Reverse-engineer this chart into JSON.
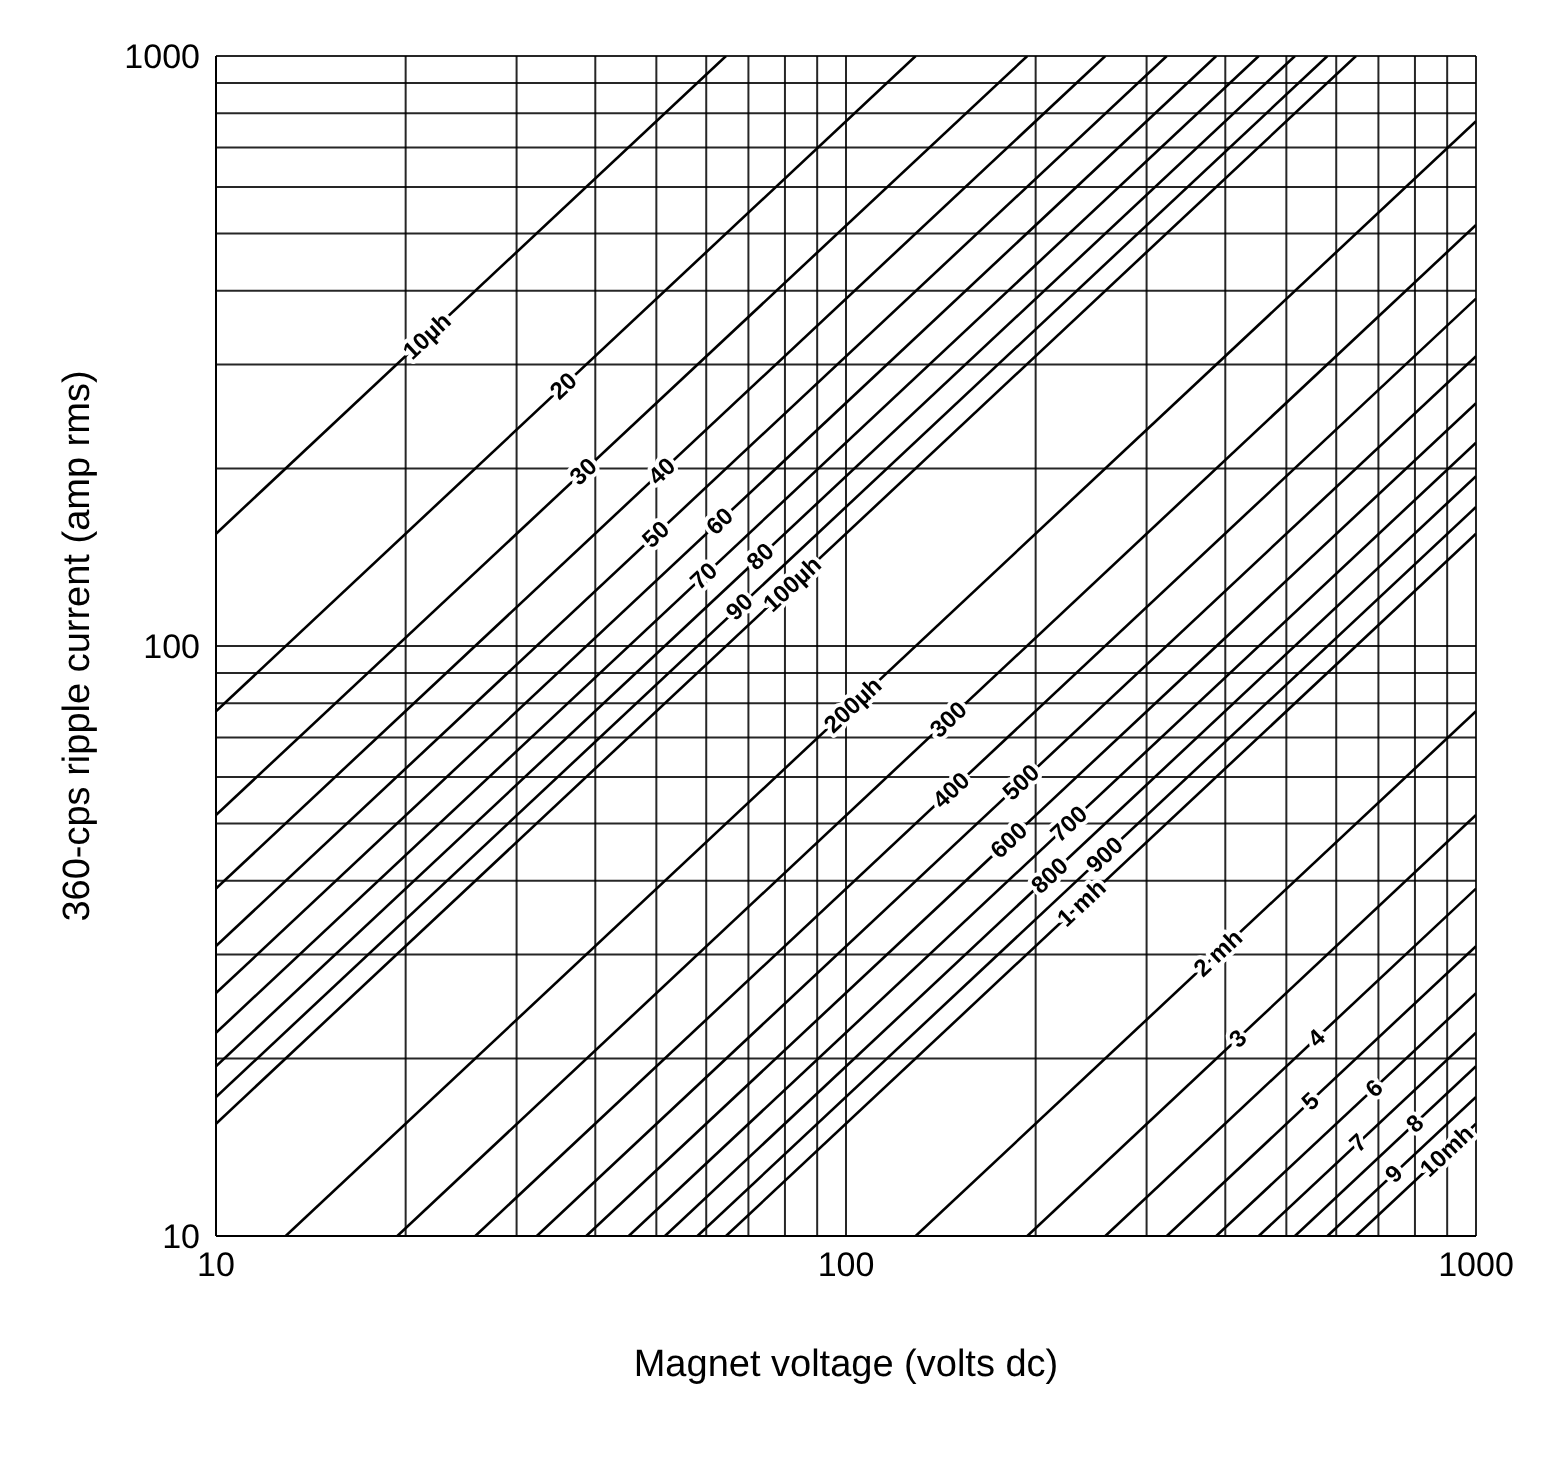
{
  "chart_data": {
    "type": "line",
    "xlabel": "Magnet voltage (volts dc)",
    "ylabel": "360-cps ripple current (amp rms)",
    "log": "xy",
    "grid": true,
    "marker": "none",
    "line_style": "solid",
    "xlim": [
      10,
      1000
    ],
    "ylim": [
      10,
      1000
    ],
    "xticks": [
      10,
      {
        "value": 20,
        "label": null
      },
      {
        "value": 30,
        "label": null
      },
      {
        "value": 40,
        "label": null
      },
      {
        "value": 50,
        "label": null
      },
      {
        "value": 60,
        "label": null
      },
      {
        "value": 70,
        "label": null
      },
      {
        "value": 80,
        "label": null
      },
      {
        "value": 90,
        "label": null
      },
      100,
      {
        "value": 200,
        "label": null
      },
      {
        "value": 300,
        "label": null
      },
      {
        "value": 400,
        "label": null
      },
      {
        "value": 500,
        "label": null
      },
      {
        "value": 600,
        "label": null
      },
      {
        "value": 700,
        "label": null
      },
      {
        "value": 800,
        "label": null
      },
      {
        "value": 900,
        "label": null
      },
      1000
    ],
    "yticks": [
      10,
      {
        "value": 20,
        "label": null
      },
      {
        "value": 30,
        "label": null
      },
      {
        "value": 40,
        "label": null
      },
      {
        "value": 50,
        "label": null
      },
      {
        "value": 60,
        "label": null
      },
      {
        "value": 70,
        "label": null
      },
      {
        "value": 80,
        "label": null
      },
      {
        "value": 90,
        "label": null
      },
      100,
      {
        "value": 200,
        "label": null
      },
      {
        "value": 300,
        "label": null
      },
      {
        "value": 400,
        "label": null
      },
      {
        "value": 500,
        "label": null
      },
      {
        "value": 600,
        "label": null
      },
      {
        "value": 700,
        "label": null
      },
      {
        "value": 800,
        "label": null
      },
      {
        "value": 900,
        "label": null
      },
      1000
    ],
    "series": [
      {
        "name": "10µh",
        "color": "#000000",
        "x": [
          10,
          64.5
        ],
        "values": [
          155,
          1000
        ]
      },
      {
        "name": "20",
        "color": "#000000",
        "x": [
          10,
          129
        ],
        "values": [
          77.5,
          1000
        ]
      },
      {
        "name": "30",
        "color": "#000000",
        "x": [
          10,
          194
        ],
        "values": [
          51.7,
          1000
        ]
      },
      {
        "name": "40",
        "color": "#000000",
        "x": [
          10,
          258
        ],
        "values": [
          38.8,
          1000
        ]
      },
      {
        "name": "50",
        "color": "#000000",
        "x": [
          10,
          323
        ],
        "values": [
          31,
          1000
        ]
      },
      {
        "name": "60",
        "color": "#000000",
        "x": [
          10,
          387
        ],
        "values": [
          25.8,
          1000
        ]
      },
      {
        "name": "70",
        "color": "#000000",
        "x": [
          10,
          452
        ],
        "values": [
          22.1,
          1000
        ]
      },
      {
        "name": "80",
        "color": "#000000",
        "x": [
          10,
          516
        ],
        "values": [
          19.4,
          1000
        ]
      },
      {
        "name": "90",
        "color": "#000000",
        "x": [
          10,
          581
        ],
        "values": [
          17.2,
          1000
        ]
      },
      {
        "name": "100µh",
        "color": "#000000",
        "x": [
          10,
          645
        ],
        "values": [
          15.5,
          1000
        ]
      },
      {
        "name": "200µh",
        "color": "#000000",
        "x": [
          12.9,
          1000
        ],
        "values": [
          10,
          775
        ]
      },
      {
        "name": "300",
        "color": "#000000",
        "x": [
          19.4,
          1000
        ],
        "values": [
          10,
          517
        ]
      },
      {
        "name": "400",
        "color": "#000000",
        "x": [
          25.8,
          1000
        ],
        "values": [
          10,
          388
        ]
      },
      {
        "name": "500",
        "color": "#000000",
        "x": [
          32.3,
          1000
        ],
        "values": [
          10,
          310
        ]
      },
      {
        "name": "600",
        "color": "#000000",
        "x": [
          38.7,
          1000
        ],
        "values": [
          10,
          258
        ]
      },
      {
        "name": "700",
        "color": "#000000",
        "x": [
          45.2,
          1000
        ],
        "values": [
          10,
          221
        ]
      },
      {
        "name": "800",
        "color": "#000000",
        "x": [
          51.6,
          1000
        ],
        "values": [
          10,
          194
        ]
      },
      {
        "name": "900",
        "color": "#000000",
        "x": [
          58.1,
          1000
        ],
        "values": [
          10,
          172
        ]
      },
      {
        "name": "1 mh",
        "color": "#000000",
        "x": [
          64.5,
          1000
        ],
        "values": [
          10,
          155
        ]
      },
      {
        "name": "2 mh",
        "color": "#000000",
        "x": [
          129,
          1000
        ],
        "values": [
          10,
          77.5
        ]
      },
      {
        "name": "3",
        "color": "#000000",
        "x": [
          194,
          1000
        ],
        "values": [
          10,
          51.7
        ]
      },
      {
        "name": "4",
        "color": "#000000",
        "x": [
          258,
          1000
        ],
        "values": [
          10,
          38.8
        ]
      },
      {
        "name": "5",
        "color": "#000000",
        "x": [
          323,
          1000
        ],
        "values": [
          10,
          31
        ]
      },
      {
        "name": "6",
        "color": "#000000",
        "x": [
          387,
          1000
        ],
        "values": [
          10,
          25.8
        ]
      },
      {
        "name": "7",
        "color": "#000000",
        "x": [
          452,
          1000
        ],
        "values": [
          10,
          22.1
        ]
      },
      {
        "name": "8",
        "color": "#000000",
        "x": [
          516,
          1000
        ],
        "values": [
          10,
          19.4
        ]
      },
      {
        "name": "9",
        "color": "#000000",
        "x": [
          581,
          1000
        ],
        "values": [
          10,
          17.2
        ]
      },
      {
        "name": "10mh",
        "color": "#000000",
        "x": [
          645,
          1000
        ],
        "values": [
          10,
          15.5
        ]
      }
    ]
  }
}
